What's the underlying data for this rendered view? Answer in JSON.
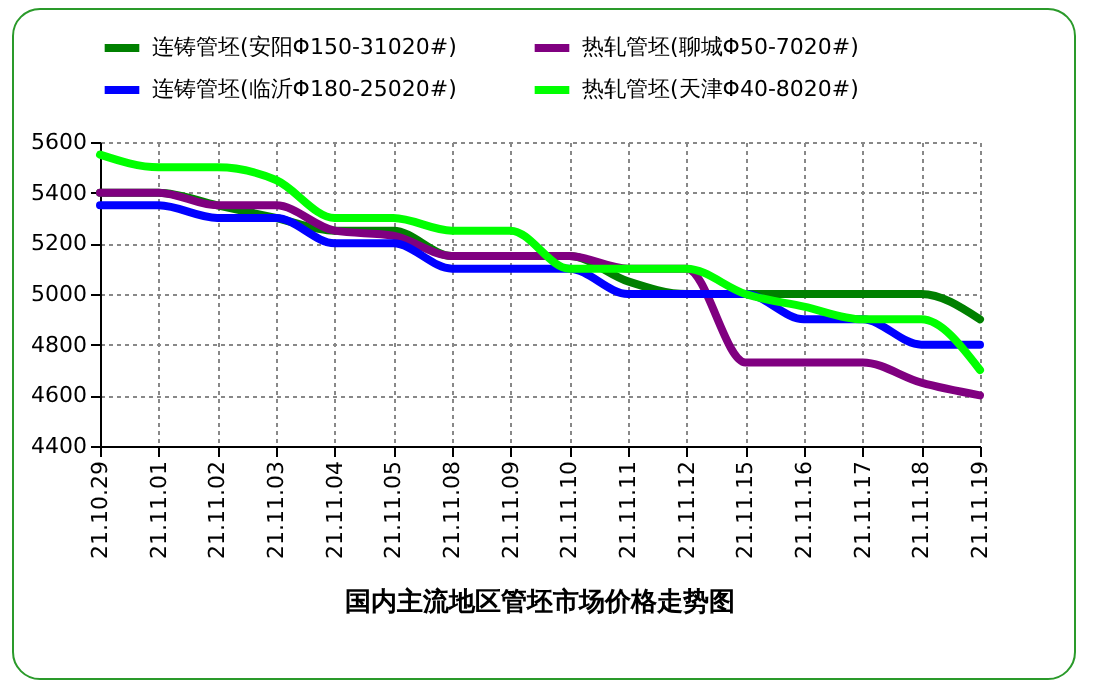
{
  "chart_data": {
    "type": "line",
    "title": "国内主流地区管坯市场价格走势图",
    "categories": [
      "21.10.29",
      "21.11.01",
      "21.11.02",
      "21.11.03",
      "21.11.04",
      "21.11.05",
      "21.11.08",
      "21.11.09",
      "21.11.10",
      "21.11.11",
      "21.11.12",
      "21.11.15",
      "21.11.16",
      "21.11.17",
      "21.11.18",
      "21.11.19"
    ],
    "series": [
      {
        "name": "连铸管坯(安阳Φ150-31020#)",
        "color": "#008000",
        "values": [
          5400,
          5400,
          5350,
          5300,
          5250,
          5250,
          5150,
          5150,
          5150,
          5050,
          5000,
          5000,
          5000,
          5000,
          5000,
          4900
        ]
      },
      {
        "name": "热轧管坯(聊城Φ50-7020#)",
        "color": "#800080",
        "values": [
          5400,
          5400,
          5350,
          5350,
          5250,
          5230,
          5150,
          5150,
          5150,
          5100,
          5100,
          4730,
          4730,
          4730,
          4650,
          4600
        ]
      },
      {
        "name": "连铸管坯(临沂Φ180-25020#)",
        "color": "#0000ff",
        "values": [
          5350,
          5350,
          5300,
          5300,
          5200,
          5200,
          5100,
          5100,
          5100,
          5000,
          5000,
          5000,
          4900,
          4900,
          4800,
          4800
        ]
      },
      {
        "name": "热轧管坯(天津Φ40-8020#)",
        "color": "#00ff00",
        "values": [
          5550,
          5500,
          5500,
          5450,
          5300,
          5300,
          5250,
          5250,
          5100,
          5100,
          5100,
          5000,
          4950,
          4900,
          4900,
          4700
        ]
      }
    ],
    "ylim": [
      4400,
      5600
    ],
    "yticks": [
      4400,
      4600,
      4800,
      5000,
      5200,
      5400,
      5600
    ],
    "grid": true,
    "legend": "top",
    "marker": "none",
    "line_style": "solid"
  }
}
